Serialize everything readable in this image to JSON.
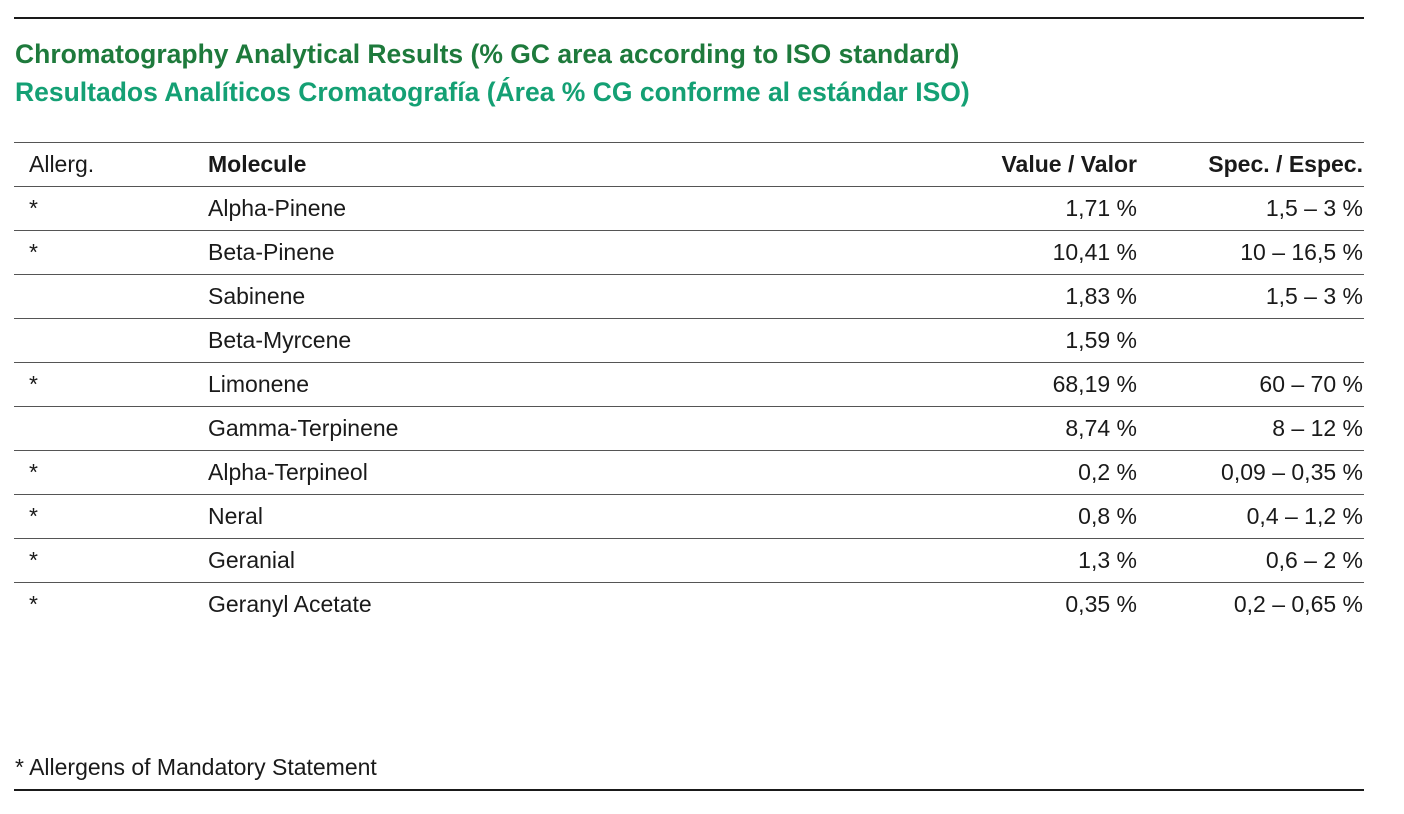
{
  "title": {
    "english": "Chromatography Analytical Results (% GC area according to ISO standard)",
    "spanish": "Resultados Analíticos Cromatografía (Área % CG conforme al estándar ISO)",
    "english_color": "#1e7a3c",
    "spanish_color": "#14a074"
  },
  "table": {
    "headers": {
      "allerg": "Allerg.",
      "molecule": "Molecule",
      "value": "Value / Valor",
      "spec": "Spec. / Espec."
    },
    "rows": [
      {
        "allerg": "*",
        "molecule": "Alpha-Pinene",
        "value": "1,71 %",
        "spec": "1,5 – 3 %"
      },
      {
        "allerg": "*",
        "molecule": "Beta-Pinene",
        "value": "10,41 %",
        "spec": "10 – 16,5 %"
      },
      {
        "allerg": "",
        "molecule": "Sabinene",
        "value": "1,83 %",
        "spec": "1,5 – 3 %"
      },
      {
        "allerg": "",
        "molecule": "Beta-Myrcene",
        "value": "1,59 %",
        "spec": ""
      },
      {
        "allerg": "*",
        "molecule": "Limonene",
        "value": "68,19 %",
        "spec": "60 – 70 %"
      },
      {
        "allerg": "",
        "molecule": "Gamma-Terpinene",
        "value": "8,74 %",
        "spec": "8 – 12 %"
      },
      {
        "allerg": "*",
        "molecule": "Alpha-Terpineol",
        "value": "0,2 %",
        "spec": "0,09 – 0,35 %"
      },
      {
        "allerg": "*",
        "molecule": "Neral",
        "value": "0,8 %",
        "spec": "0,4 – 1,2 %"
      },
      {
        "allerg": "*",
        "molecule": "Geranial",
        "value": "1,3 %",
        "spec": "0,6 – 2 %"
      },
      {
        "allerg": "*",
        "molecule": "Geranyl Acetate",
        "value": "0,35 %",
        "spec": "0,2 – 0,65 %"
      }
    ]
  },
  "footnote": "* Allergens of Mandatory Statement"
}
